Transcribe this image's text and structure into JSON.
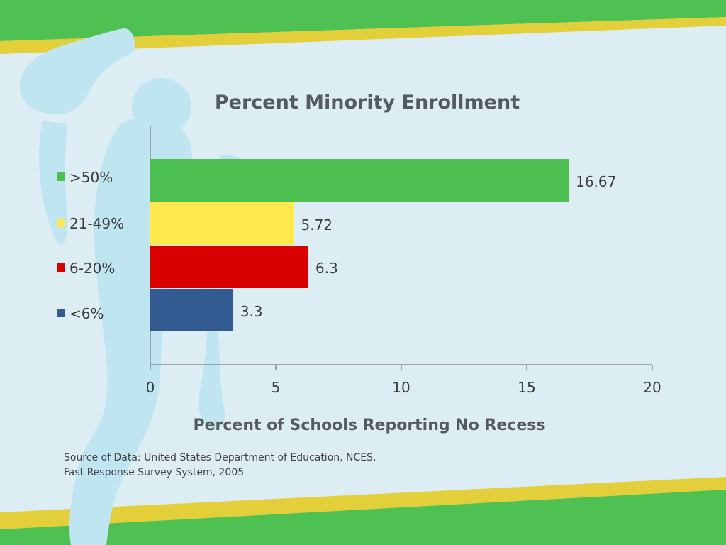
{
  "slide": {
    "colors": {
      "background": "#dcedf4",
      "band_green": "#4fc052",
      "band_yellow": "#e3cf3a",
      "silhouette": "#bfe5f1"
    },
    "source_lines": [
      "Source of Data: United States Department of Education, NCES,",
      "Fast Response Survey System, 2005"
    ]
  },
  "chart_data": {
    "type": "bar",
    "orientation": "horizontal",
    "title": "Percent Minority Enrollment",
    "xlabel": "Percent of Schools Reporting No Recess",
    "ylabel": "",
    "xlim": [
      0,
      20
    ],
    "xticks": [
      "0",
      "5",
      "10",
      "15",
      "20"
    ],
    "xtick_values": [
      0,
      5,
      10,
      15,
      20
    ],
    "grid": false,
    "legend_position": "left",
    "categories": [
      ">50%",
      "21-49%",
      "6-20%",
      "<6%"
    ],
    "values": [
      16.67,
      5.72,
      6.3,
      3.3
    ],
    "value_labels": [
      "16.67",
      "5.72",
      "6.3",
      "3.3"
    ],
    "colors": [
      "#4cbf50",
      "#ffe94d",
      "#d90000",
      "#335a91"
    ]
  }
}
